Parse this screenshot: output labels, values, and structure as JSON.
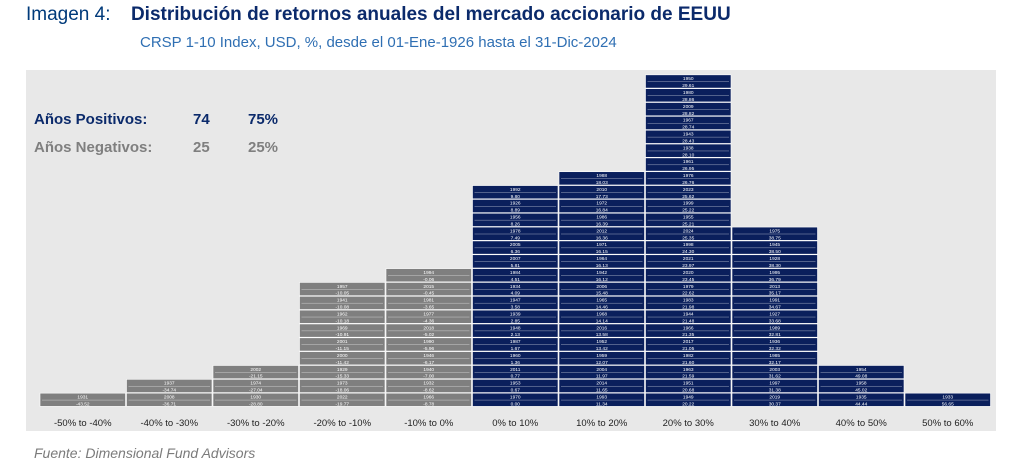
{
  "header": {
    "label": "Imagen 4:",
    "title": "Distribución de retornos anuales del mercado accionario de EEUU",
    "subtitle": "CRSP 1-10 Index, USD, %, desde el 01-Ene-1926 hasta el 31-Dic-2024"
  },
  "source": "Fuente: Dimensional Fund Advisors",
  "summary": {
    "positive": {
      "label": "Años Positivos:",
      "count": "74",
      "pct": "75%"
    },
    "negative": {
      "label": "Años Negativos:",
      "count": "25",
      "pct": "25%"
    }
  },
  "colors": {
    "positive": "#0a1f5c",
    "negative": "#7f7f7f",
    "background": "#e8e8e8",
    "title": "#0b2a6b",
    "subtitle": "#2f6fb3"
  },
  "chart_data": {
    "type": "bar",
    "categories": [
      "-50% to -40%",
      "-40% to -30%",
      "-30% to -20%",
      "-20% to -10%",
      "-10% to 0%",
      "0% to 10%",
      "10% to 20%",
      "20% to 30%",
      "30% to 40%",
      "40% to 50%",
      "50% to 60%"
    ],
    "bins": [
      {
        "sign": "negative",
        "years": [
          {
            "year": "1931",
            "ret": "-43.52"
          }
        ]
      },
      {
        "sign": "negative",
        "years": [
          {
            "year": "2008",
            "ret": "-36.71"
          },
          {
            "year": "1937",
            "ret": "-34.74"
          }
        ]
      },
      {
        "sign": "negative",
        "years": [
          {
            "year": "1930",
            "ret": "-28.80"
          },
          {
            "year": "1974",
            "ret": "-27.04"
          },
          {
            "year": "2002",
            "ret": "-21.15"
          }
        ]
      },
      {
        "sign": "negative",
        "years": [
          {
            "year": "2022",
            "ret": "-19.77"
          },
          {
            "year": "1973",
            "ret": "-18.06"
          },
          {
            "year": "1929",
            "ret": "-15.33"
          },
          {
            "year": "2000",
            "ret": "-11.42"
          },
          {
            "year": "2001",
            "ret": "-11.15"
          },
          {
            "year": "1969",
            "ret": "-10.91"
          },
          {
            "year": "1962",
            "ret": "-10.18"
          },
          {
            "year": "1941",
            "ret": "-10.08"
          },
          {
            "year": "1957",
            "ret": "-10.05"
          }
        ]
      },
      {
        "sign": "negative",
        "years": [
          {
            "year": "1966",
            "ret": "-8.78"
          },
          {
            "year": "1932",
            "ret": "-8.62"
          },
          {
            "year": "1940",
            "ret": "-7.00"
          },
          {
            "year": "1946",
            "ret": "-6.17"
          },
          {
            "year": "1990",
            "ret": "-5.96"
          },
          {
            "year": "2018",
            "ret": "-5.02"
          },
          {
            "year": "1977",
            "ret": "-4.36"
          },
          {
            "year": "1981",
            "ret": "-3.65"
          },
          {
            "year": "2015",
            "ret": "-0.45"
          },
          {
            "year": "1994",
            "ret": "-0.06"
          }
        ]
      },
      {
        "sign": "positive",
        "years": [
          {
            "year": "1970",
            "ret": "0.00"
          },
          {
            "year": "1953",
            "ret": "0.67"
          },
          {
            "year": "2011",
            "ret": "0.77"
          },
          {
            "year": "1960",
            "ret": "1.36"
          },
          {
            "year": "1987",
            "ret": "1.67"
          },
          {
            "year": "1948",
            "ret": "2.13"
          },
          {
            "year": "1939",
            "ret": "2.85"
          },
          {
            "year": "1947",
            "ret": "3.58"
          },
          {
            "year": "1934",
            "ret": "4.09"
          },
          {
            "year": "1984",
            "ret": "4.51"
          },
          {
            "year": "2007",
            "ret": "5.81"
          },
          {
            "year": "2005",
            "ret": "6.36"
          },
          {
            "year": "1978",
            "ret": "7.49"
          },
          {
            "year": "1956",
            "ret": "8.26"
          },
          {
            "year": "1926",
            "ret": "8.89"
          },
          {
            "year": "1992",
            "ret": "9.80"
          }
        ]
      },
      {
        "sign": "positive",
        "years": [
          {
            "year": "1993",
            "ret": "11.34"
          },
          {
            "year": "2014",
            "ret": "11.65"
          },
          {
            "year": "2004",
            "ret": "11.97"
          },
          {
            "year": "1959",
            "ret": "12.07"
          },
          {
            "year": "1952",
            "ret": "13.42"
          },
          {
            "year": "2016",
            "ret": "13.58"
          },
          {
            "year": "1968",
            "ret": "14.14"
          },
          {
            "year": "1965",
            "ret": "14.46"
          },
          {
            "year": "2006",
            "ret": "15.48"
          },
          {
            "year": "1942",
            "ret": "16.12"
          },
          {
            "year": "1964",
            "ret": "16.13"
          },
          {
            "year": "1971",
            "ret": "16.15"
          },
          {
            "year": "2012",
            "ret": "16.36"
          },
          {
            "year": "1986",
            "ret": "16.39"
          },
          {
            "year": "1972",
            "ret": "16.84"
          },
          {
            "year": "2010",
            "ret": "17.73"
          },
          {
            "year": "1988",
            "ret": "18.03"
          }
        ]
      },
      {
        "sign": "positive",
        "years": [
          {
            "year": "1949",
            "ret": "20.22"
          },
          {
            "year": "1951",
            "ret": "20.68"
          },
          {
            "year": "1963",
            "ret": "21.59"
          },
          {
            "year": "1982",
            "ret": "21.60"
          },
          {
            "year": "2017",
            "ret": "21.05"
          },
          {
            "year": "1966",
            "ret": "21.35"
          },
          {
            "year": "1944",
            "ret": "21.48"
          },
          {
            "year": "1983",
            "ret": "21.98"
          },
          {
            "year": "1979",
            "ret": "22.62"
          },
          {
            "year": "2020",
            "ret": "23.45"
          },
          {
            "year": "2021",
            "ret": "23.97"
          },
          {
            "year": "1998",
            "ret": "24.30"
          },
          {
            "year": "2024",
            "ret": "25.35"
          },
          {
            "year": "1955",
            "ret": "25.21"
          },
          {
            "year": "1999",
            "ret": "25.22"
          },
          {
            "year": "2023",
            "ret": "25.62"
          },
          {
            "year": "1976",
            "ret": "26.76"
          },
          {
            "year": "1961",
            "ret": "26.95"
          },
          {
            "year": "1938",
            "ret": "28.10"
          },
          {
            "year": "1943",
            "ret": "28.43"
          },
          {
            "year": "1967",
            "ret": "28.74"
          },
          {
            "year": "2009",
            "ret": "28.82"
          },
          {
            "year": "1980",
            "ret": "28.86"
          },
          {
            "year": "1950",
            "ret": "29.61"
          }
        ]
      },
      {
        "sign": "positive",
        "years": [
          {
            "year": "2019",
            "ret": "30.37"
          },
          {
            "year": "1997",
            "ret": "31.38"
          },
          {
            "year": "2003",
            "ret": "31.62"
          },
          {
            "year": "1985",
            "ret": "32.17"
          },
          {
            "year": "1936",
            "ret": "32.32"
          },
          {
            "year": "1989",
            "ret": "32.81"
          },
          {
            "year": "1927",
            "ret": "33.68"
          },
          {
            "year": "1991",
            "ret": "34.67"
          },
          {
            "year": "2013",
            "ret": "35.17"
          },
          {
            "year": "1995",
            "ret": "36.79"
          },
          {
            "year": "1928",
            "ret": "38.30"
          },
          {
            "year": "1945",
            "ret": "38.50"
          },
          {
            "year": "1975",
            "ret": "38.75"
          }
        ]
      },
      {
        "sign": "positive",
        "years": [
          {
            "year": "1935",
            "ret": "44.44"
          },
          {
            "year": "1958",
            "ret": "45.02"
          },
          {
            "year": "1954",
            "ret": "49.08"
          }
        ]
      },
      {
        "sign": "positive",
        "years": [
          {
            "year": "1933",
            "ret": "56.65"
          }
        ]
      }
    ]
  }
}
